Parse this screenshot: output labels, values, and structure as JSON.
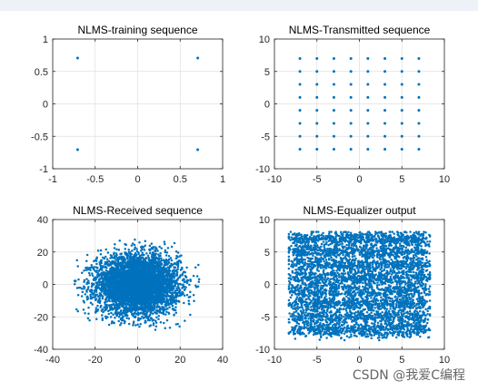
{
  "watermark": "CSDN @我爱C编程",
  "chart_data": [
    {
      "type": "scatter",
      "title": "NLMS-training sequence",
      "xlabel": "",
      "ylabel": "",
      "xlim": [
        -1,
        1
      ],
      "ylim": [
        -1,
        1
      ],
      "xticks": [
        -1,
        -0.5,
        0,
        0.5,
        1
      ],
      "yticks": [
        -1,
        -0.5,
        0,
        0.5,
        1
      ],
      "xticklabels": [
        "-1",
        "-0.5",
        "0",
        "0.5",
        "1"
      ],
      "yticklabels": [
        "-1",
        "-0.5",
        "0",
        "0.5",
        "1"
      ],
      "grid": true,
      "color": "#0072bd",
      "points": [
        [
          -0.707,
          0.707
        ],
        [
          0.707,
          0.707
        ],
        [
          -0.707,
          -0.707
        ],
        [
          0.707,
          -0.707
        ]
      ]
    },
    {
      "type": "scatter",
      "title": "NLMS-Transmitted sequence",
      "xlabel": "",
      "ylabel": "",
      "xlim": [
        -10,
        10
      ],
      "ylim": [
        -10,
        10
      ],
      "xticks": [
        -10,
        -5,
        0,
        5,
        10
      ],
      "yticks": [
        -10,
        -5,
        0,
        5,
        10
      ],
      "xticklabels": [
        "-10",
        "-5",
        "0",
        "5",
        "10"
      ],
      "yticklabels": [
        "-10",
        "-5",
        "0",
        "5",
        "10"
      ],
      "grid": true,
      "color": "#0072bd",
      "grid_levels": [
        -7,
        -5,
        -3,
        -1,
        1,
        3,
        5,
        7
      ],
      "description_kind": "64-point constellation grid at odd values -7..7"
    },
    {
      "type": "scatter",
      "title": "NLMS-Received sequence",
      "xlabel": "",
      "ylabel": "",
      "xlim": [
        -40,
        40
      ],
      "ylim": [
        -40,
        40
      ],
      "xticks": [
        -40,
        -20,
        0,
        20,
        40
      ],
      "yticks": [
        -40,
        -20,
        0,
        20,
        40
      ],
      "xticklabels": [
        "-40",
        "-20",
        "0",
        "20",
        "40"
      ],
      "yticklabels": [
        "-40",
        "-20",
        "0",
        "20",
        "40"
      ],
      "grid": true,
      "color": "#0072bd",
      "cloud": {
        "center": [
          0,
          0
        ],
        "spread_x": 9.5,
        "spread_y": 9.0,
        "max_abs_x": 30,
        "max_abs_y": 28,
        "n": 5000
      }
    },
    {
      "type": "scatter",
      "title": "NLMS-Equalizer output",
      "xlabel": "",
      "ylabel": "",
      "xlim": [
        -10,
        10
      ],
      "ylim": [
        -10,
        10
      ],
      "xticks": [
        -10,
        -5,
        0,
        5,
        10
      ],
      "yticks": [
        -10,
        -5,
        0,
        5,
        10
      ],
      "xticklabels": [
        "-10",
        "-5",
        "0",
        "5",
        "10"
      ],
      "yticklabels": [
        "-10",
        "-5",
        "0",
        "5",
        "10"
      ],
      "grid": true,
      "color": "#0072bd",
      "grid_levels": [
        -7,
        -5,
        -3,
        -1,
        1,
        3,
        5,
        7
      ],
      "noise_sd": 0.7,
      "n": 5000
    }
  ]
}
